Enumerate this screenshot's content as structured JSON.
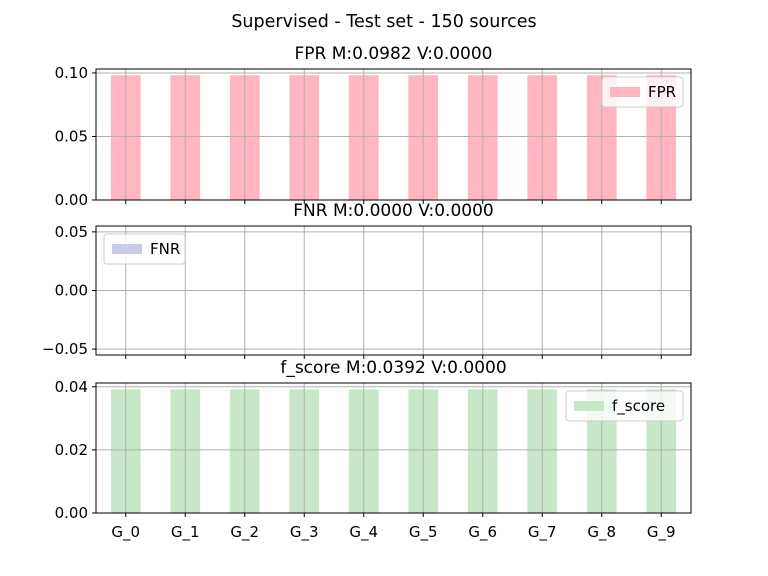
{
  "chart_data": {
    "type": "bar",
    "suptitle": "Supervised - Test set - 150 sources",
    "categories": [
      "G_0",
      "G_1",
      "G_2",
      "G_3",
      "G_4",
      "G_5",
      "G_6",
      "G_7",
      "G_8",
      "G_9"
    ],
    "grid": true,
    "panels": [
      {
        "title": "FPR M:0.0982 V:0.0000",
        "series": [
          {
            "name": "FPR",
            "values": [
              0.0982,
              0.0982,
              0.0982,
              0.0982,
              0.0982,
              0.0982,
              0.0982,
              0.0982,
              0.0982,
              0.0982
            ]
          }
        ],
        "color": "#ffb6c1",
        "ylim": [
          0,
          0.1031
        ],
        "yticks": [
          0.0,
          0.05,
          0.1
        ],
        "ytick_labels": [
          "0.00",
          "0.05",
          "0.10"
        ],
        "legend_placement": "upper right"
      },
      {
        "title": "FNR M:0.0000 V:0.0000",
        "series": [
          {
            "name": "FNR",
            "values": [
              0,
              0,
              0,
              0,
              0,
              0,
              0,
              0,
              0,
              0
            ]
          }
        ],
        "color": "#c8cce6",
        "ylim": [
          -0.055,
          0.055
        ],
        "yticks": [
          -0.05,
          0.0,
          0.05
        ],
        "ytick_labels": [
          "−0.05",
          "0.00",
          "0.05"
        ],
        "legend_placement": "upper left"
      },
      {
        "title": "f_score M:0.0392 V:0.0000",
        "series": [
          {
            "name": "f_score",
            "values": [
              0.0392,
              0.0392,
              0.0392,
              0.0392,
              0.0392,
              0.0392,
              0.0392,
              0.0392,
              0.0392,
              0.0392
            ]
          }
        ],
        "color": "#c8e6c8",
        "ylim": [
          0,
          0.0412
        ],
        "yticks": [
          0.0,
          0.02,
          0.04
        ],
        "ytick_labels": [
          "0.00",
          "0.02",
          "0.04"
        ],
        "legend_placement": "upper right"
      }
    ]
  }
}
